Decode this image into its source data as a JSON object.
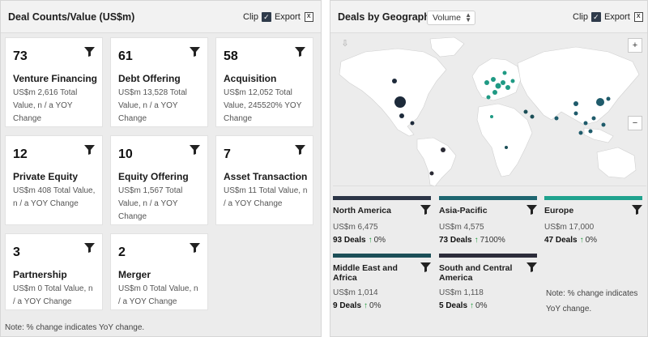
{
  "left": {
    "title": "Deal Counts/Value (US$m)",
    "clip_label": "Clip",
    "export_label": "Export",
    "cards": [
      {
        "count": "73",
        "title": "Venture Financing",
        "desc": "US$m 2,616 Total Value, n / a YOY Change"
      },
      {
        "count": "61",
        "title": "Debt Offering",
        "desc": "US$m 13,528 Total Value, n / a YOY Change"
      },
      {
        "count": "58",
        "title": "Acquisition",
        "desc": "US$m 12,052 Total Value, 245520% YOY Change"
      },
      {
        "count": "12",
        "title": "Private Equity",
        "desc": "US$m 408 Total Value, n / a YOY Change"
      },
      {
        "count": "10",
        "title": "Equity Offering",
        "desc": "US$m 1,567 Total Value, n / a YOY Change"
      },
      {
        "count": "7",
        "title": "Asset Transaction",
        "desc": "US$m 11 Total Value, n / a YOY Change"
      },
      {
        "count": "3",
        "title": "Partnership",
        "desc": "US$m 0 Total Value, n / a YOY Change"
      },
      {
        "count": "2",
        "title": "Merger",
        "desc": "US$m 0 Total Value, n / a YOY Change"
      }
    ],
    "note": "Note: % change indicates YoY change."
  },
  "right": {
    "title": "Deals by Geography",
    "volume_select": "Volume",
    "clip_label": "Clip",
    "export_label": "Export",
    "map": {
      "zoom_in": "+",
      "zoom_out": "−",
      "colors": {
        "land": "#ffffff",
        "water": "#ececec",
        "na": "#1d2a3a",
        "apac": "#1f5b6b",
        "europe": "#1f9a84",
        "samerica": "#2a2a34"
      }
    },
    "regions": [
      {
        "name": "North America",
        "value": "US$m 6,475",
        "deals": "93 Deals",
        "change": "0%",
        "color": "#2b3547"
      },
      {
        "name": "Asia-Pacific",
        "value": "US$m 4,575",
        "deals": "73 Deals",
        "change": "7100%",
        "color": "#1e6670"
      },
      {
        "name": "Europe",
        "value": "US$m 17,000",
        "deals": "47 Deals",
        "change": "0%",
        "color": "#1fa28e"
      },
      {
        "name": "Middle East and Africa",
        "value": "US$m 1,014",
        "deals": "9 Deals",
        "change": "0%",
        "color": "#1b4e57"
      },
      {
        "name": "South and Central America",
        "value": "US$m 1,118",
        "deals": "5 Deals",
        "change": "0%",
        "color": "#2c2c3a"
      }
    ],
    "note": "Note: % change indicates YoY change."
  }
}
